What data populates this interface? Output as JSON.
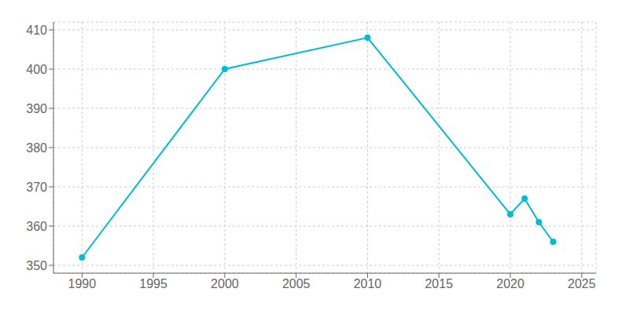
{
  "chart_data": {
    "type": "line",
    "x": [
      1990,
      2000,
      2010,
      2020,
      2021,
      2022,
      2023
    ],
    "values": [
      352,
      400,
      408,
      363,
      367,
      361,
      356
    ],
    "color": "#00bcd4",
    "marker": "circle",
    "xlim": [
      1988,
      2026
    ],
    "ylim": [
      348,
      412
    ],
    "xticks": [
      1990,
      1995,
      2000,
      2005,
      2010,
      2015,
      2020,
      2025
    ],
    "yticks": [
      350,
      360,
      370,
      380,
      390,
      400,
      410
    ],
    "grid": true
  }
}
